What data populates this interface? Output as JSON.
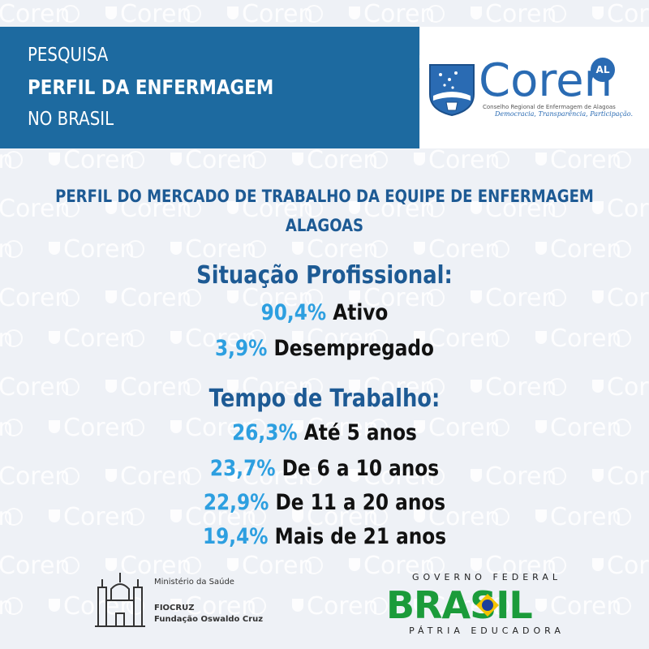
{
  "header": {
    "line1": "PESQUISA",
    "line2": "PERFIL DA ENFERMAGEM",
    "line3": "NO BRASIL"
  },
  "logo": {
    "word": "Coren",
    "badge": "AL",
    "subtitle": "Conselho Regional de Enfermagem de Alagoas",
    "tagline": "Democracia, Transparência, Participação."
  },
  "watermark": {
    "word": "Coren"
  },
  "main": {
    "title_line1": "PERFIL DO MERCADO DE TRABALHO DA EQUIPE DE ENFERMAGEM",
    "title_line2": "ALAGOAS",
    "situacao": {
      "heading": "Situação Profissional:",
      "items": [
        {
          "pct": "90,4%",
          "label": "Ativo"
        },
        {
          "pct": "3,9%",
          "label": "Desempregado"
        }
      ]
    },
    "tempo": {
      "heading": "Tempo de Trabalho:",
      "items": [
        {
          "pct": "26,3%",
          "label": "Até 5 anos"
        },
        {
          "pct": "23,7%",
          "label": "De 6 a 10 anos"
        },
        {
          "pct": "22,9%",
          "label": "De 11 a 20 anos"
        },
        {
          "pct": "19,4%",
          "label": "Mais de 21 anos"
        }
      ]
    }
  },
  "footer": {
    "fiocruz": {
      "ministry": "Ministério da Saúde",
      "name": "FIOCRUZ",
      "full": "Fundação Oswaldo Cruz"
    },
    "brasil": {
      "top": "GOVERNO FEDERAL",
      "word": "BRASIL",
      "bottom": "PÁTRIA EDUCADORA"
    }
  },
  "colors": {
    "header_bg": "#1d6aa0",
    "title": "#1d5a94",
    "percent": "#2d9fe0",
    "background": "#eef1f6"
  }
}
